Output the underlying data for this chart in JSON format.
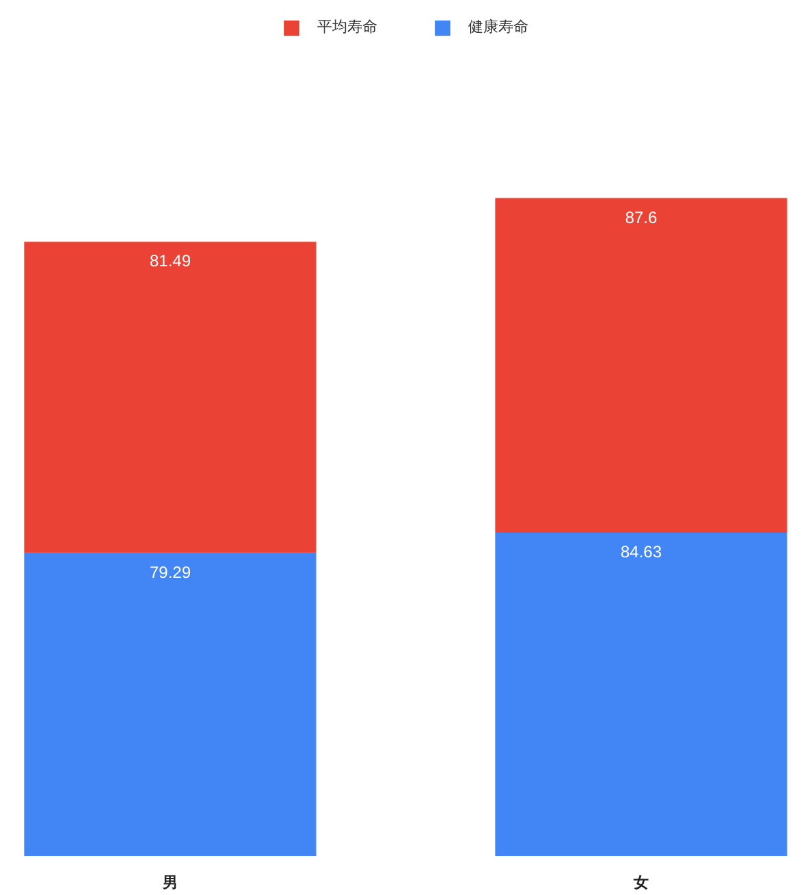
{
  "chart_data": {
    "type": "bar",
    "categories": [
      "男",
      "女"
    ],
    "stacked": true,
    "data_labels": true,
    "legend": "top",
    "series": [
      {
        "name": "健康寿命",
        "color": "#4285f4",
        "values": [
          79.29,
          84.63
        ]
      },
      {
        "name": "平均寿命",
        "color": "#ea4335",
        "values": [
          81.49,
          87.6
        ]
      }
    ]
  }
}
